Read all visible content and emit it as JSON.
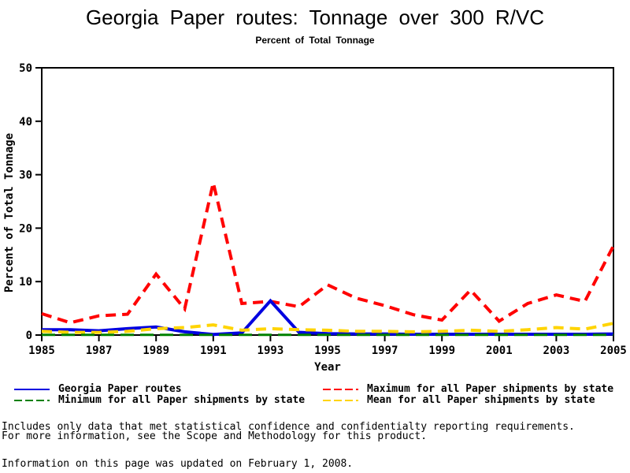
{
  "chart_data": {
    "type": "line",
    "title": "Georgia Paper routes: Tonnage over 300 R/VC",
    "subtitle": "Percent of Total Tonnage",
    "xlabel": "Year",
    "ylabel": "Percent of Total Tonnage",
    "xlim": [
      1985,
      2005
    ],
    "ylim": [
      0,
      50
    ],
    "x_ticks": [
      1985,
      1987,
      1989,
      1991,
      1993,
      1995,
      1997,
      1999,
      2001,
      2003,
      2005
    ],
    "y_ticks": [
      0,
      10,
      20,
      30,
      40,
      50
    ],
    "grid": false,
    "legend_position": "bottom",
    "x": [
      1985,
      1986,
      1987,
      1988,
      1989,
      1990,
      1991,
      1992,
      1993,
      1994,
      1995,
      1996,
      1997,
      1998,
      1999,
      2000,
      2001,
      2002,
      2003,
      2004,
      2005
    ],
    "series": [
      {
        "name": "Georgia Paper routes",
        "color": "#0000e0",
        "dashed": false,
        "values": [
          1.0,
          1.0,
          0.8,
          1.2,
          1.5,
          0.6,
          0.1,
          0.4,
          6.4,
          0.5,
          0.25,
          0.2,
          0.2,
          0.15,
          0.15,
          0.15,
          0.15,
          0.15,
          0.15,
          0.15,
          0.2
        ]
      },
      {
        "name": "Maximum for all Paper shipments by state",
        "color": "#ff0000",
        "dashed": true,
        "values": [
          4.0,
          2.3,
          3.6,
          3.9,
          11.4,
          4.9,
          28.5,
          5.9,
          6.3,
          5.3,
          9.4,
          6.9,
          5.5,
          3.8,
          2.8,
          8.4,
          2.6,
          5.9,
          7.5,
          6.3,
          16.7
        ]
      },
      {
        "name": "Minimum for all Paper shipments by state",
        "color": "#008000",
        "dashed": true,
        "values": [
          0.05,
          0.05,
          0.05,
          0.05,
          0.05,
          0.05,
          0.05,
          0.05,
          0.05,
          0.05,
          0.05,
          0.05,
          0.05,
          0.05,
          0.05,
          0.05,
          0.05,
          0.05,
          0.05,
          0.05,
          0.05
        ]
      },
      {
        "name": "Mean for all Paper shipments by state",
        "color": "#ffd400",
        "dashed": true,
        "values": [
          0.7,
          0.5,
          0.5,
          0.7,
          1.2,
          1.4,
          1.9,
          0.9,
          1.2,
          1.0,
          0.9,
          0.7,
          0.7,
          0.6,
          0.7,
          0.9,
          0.7,
          1.0,
          1.4,
          1.1,
          2.2
        ]
      }
    ]
  },
  "footnotes": {
    "line1": "Includes only data that met statistical confidence and confidentialty reporting requirements.",
    "line2": "For more information, see the Scope and Methodology for this product.",
    "line3": "Information on this page was updated on February 1, 2008."
  }
}
